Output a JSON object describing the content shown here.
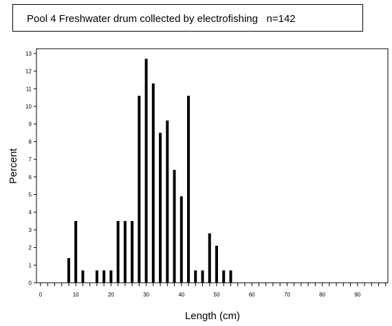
{
  "chart_data": {
    "type": "bar",
    "title": "Pool 4 Freshwater drum collected by electrofishing   n=142",
    "xlabel": "Length (cm)",
    "ylabel": "Percent",
    "xlim": [
      0,
      98
    ],
    "ylim": [
      0,
      13
    ],
    "x_ticks": [
      0,
      10,
      20,
      30,
      40,
      50,
      60,
      70,
      80,
      90
    ],
    "y_ticks": [
      0,
      1,
      2,
      3,
      4,
      5,
      6,
      7,
      8,
      9,
      10,
      11,
      12,
      13
    ],
    "x_minor_step": 2,
    "grid": false,
    "x": [
      8,
      10,
      12,
      16,
      18,
      20,
      22,
      24,
      26,
      28,
      30,
      32,
      34,
      36,
      38,
      40,
      42,
      44,
      46,
      48,
      50,
      52,
      54
    ],
    "values": [
      1.4,
      3.5,
      0.7,
      0.7,
      0.7,
      0.7,
      3.5,
      3.5,
      3.5,
      10.6,
      12.7,
      11.3,
      8.5,
      9.2,
      6.4,
      4.9,
      10.6,
      0.7,
      0.7,
      2.8,
      2.1,
      0.7,
      0.7
    ],
    "bar_color": "#000000"
  }
}
